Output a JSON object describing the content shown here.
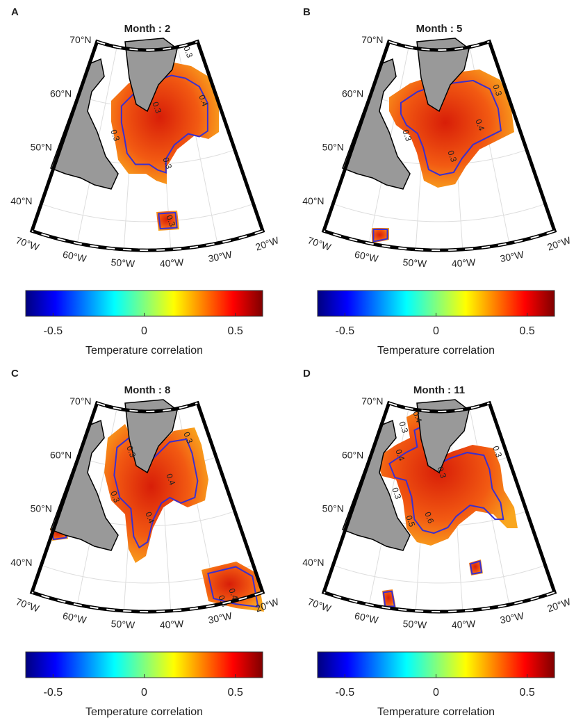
{
  "panels": [
    {
      "letter": "A",
      "title": "Month : 2",
      "lat_ticks": [
        {
          "value": 70,
          "label": "70°N"
        },
        {
          "value": 60,
          "label": "60°N"
        },
        {
          "value": 50,
          "label": "50°N"
        },
        {
          "value": 40,
          "label": "40°N"
        }
      ],
      "lon_ticks": [
        {
          "value": -70,
          "label": "70°W"
        },
        {
          "value": -60,
          "label": "60°W"
        },
        {
          "value": -50,
          "label": "50°W"
        },
        {
          "value": -40,
          "label": "40°W"
        },
        {
          "value": -30,
          "label": "30°W"
        },
        {
          "value": -20,
          "label": "20°W"
        }
      ],
      "contour_labels": [
        0.3,
        0.4,
        0.3,
        0.3,
        0.3,
        0.3
      ],
      "colorbar": {
        "clim": [
          -0.65,
          0.65
        ],
        "ticks": [
          -0.5,
          0,
          0.5
        ],
        "label": "Temperature correlation"
      }
    },
    {
      "letter": "B",
      "title": "Month : 5",
      "lat_ticks": [
        {
          "value": 70,
          "label": "70°N"
        },
        {
          "value": 60,
          "label": "60°N"
        },
        {
          "value": 50,
          "label": "50°N"
        },
        {
          "value": 40,
          "label": "40°N"
        }
      ],
      "lon_ticks": [
        {
          "value": -70,
          "label": "70°W"
        },
        {
          "value": -60,
          "label": "60°W"
        },
        {
          "value": -50,
          "label": "50°W"
        },
        {
          "value": -40,
          "label": "40°W"
        },
        {
          "value": -30,
          "label": "30°W"
        },
        {
          "value": -20,
          "label": "20°W"
        }
      ],
      "contour_labels": [
        0.3,
        0.4,
        0.3,
        0.3
      ],
      "colorbar": {
        "clim": [
          -0.65,
          0.65
        ],
        "ticks": [
          -0.5,
          0,
          0.5
        ],
        "label": "Temperature correlation"
      }
    },
    {
      "letter": "C",
      "title": "Month : 8",
      "lat_ticks": [
        {
          "value": 70,
          "label": "70°N"
        },
        {
          "value": 60,
          "label": "60°N"
        },
        {
          "value": 50,
          "label": "50°N"
        },
        {
          "value": 40,
          "label": "40°N"
        }
      ],
      "lon_ticks": [
        {
          "value": -70,
          "label": "70°W"
        },
        {
          "value": -60,
          "label": "60°W"
        },
        {
          "value": -50,
          "label": "50°W"
        },
        {
          "value": -40,
          "label": "40°W"
        },
        {
          "value": -30,
          "label": "30°W"
        },
        {
          "value": -20,
          "label": "20°W"
        }
      ],
      "contour_labels": [
        0.3,
        0.3,
        0.3,
        0.4,
        0.4,
        0.3,
        0.4
      ],
      "colorbar": {
        "clim": [
          -0.65,
          0.65
        ],
        "ticks": [
          -0.5,
          0,
          0.5
        ],
        "label": "Temperature correlation"
      }
    },
    {
      "letter": "D",
      "title": "Month : 11",
      "lat_ticks": [
        {
          "value": 70,
          "label": "70°N"
        },
        {
          "value": 60,
          "label": "60°N"
        },
        {
          "value": 50,
          "label": "50°N"
        },
        {
          "value": 40,
          "label": "40°N"
        }
      ],
      "lon_ticks": [
        {
          "value": -70,
          "label": "70°W"
        },
        {
          "value": -60,
          "label": "60°W"
        },
        {
          "value": -50,
          "label": "50°W"
        },
        {
          "value": -40,
          "label": "40°W"
        },
        {
          "value": -30,
          "label": "30°W"
        },
        {
          "value": -20,
          "label": "20°W"
        }
      ],
      "contour_labels": [
        0.4,
        0.3,
        0.4,
        0.3,
        0.3,
        0.3,
        0.5,
        0.6
      ],
      "colorbar": {
        "clim": [
          -0.65,
          0.65
        ],
        "ticks": [
          -0.5,
          0,
          0.5
        ],
        "label": "Temperature correlation"
      }
    }
  ]
}
